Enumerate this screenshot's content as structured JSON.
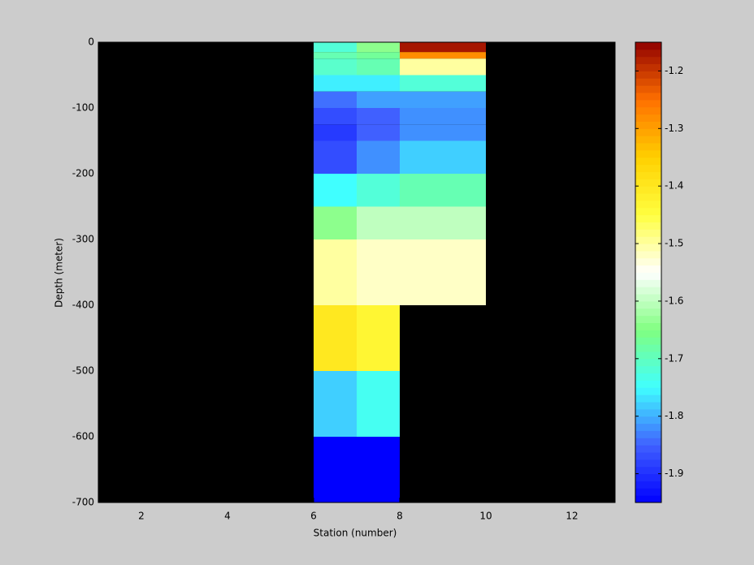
{
  "chart_data": {
    "type": "heatmap",
    "xlabel": "Station (number)",
    "ylabel": "Depth (meter)",
    "x_edges": [
      6,
      7,
      8,
      10
    ],
    "y_edges": [
      0,
      -15,
      -25,
      -50,
      -75,
      -100,
      -125,
      -150,
      -200,
      -250,
      -300,
      -400,
      -500,
      -600,
      -700
    ],
    "values": [
      [
        -1.72,
        -1.64,
        -1.17
      ],
      [
        -1.69,
        -1.67,
        -1.28
      ],
      [
        -1.71,
        -1.69,
        -1.5
      ],
      [
        -1.76,
        -1.76,
        -1.72
      ],
      [
        -1.84,
        -1.81,
        -1.81
      ],
      [
        -1.87,
        -1.85,
        -1.82
      ],
      [
        -1.89,
        -1.85,
        -1.82
      ],
      [
        -1.87,
        -1.82,
        -1.78
      ],
      [
        -1.75,
        -1.72,
        -1.69
      ],
      [
        -1.64,
        -1.6,
        -1.6
      ],
      [
        -1.5,
        -1.52,
        -1.52
      ],
      [
        -1.4,
        -1.43,
        null
      ],
      [
        -1.78,
        -1.74,
        null
      ],
      [
        -1.95,
        -1.95,
        null
      ]
    ],
    "xlim": [
      1,
      13
    ],
    "xticks": [
      2,
      4,
      6,
      8,
      10,
      12
    ],
    "ylim": [
      -700,
      0
    ],
    "yticks": [
      0,
      -100,
      -200,
      -300,
      -400,
      -500,
      -600,
      -700
    ],
    "clim": [
      -1.95,
      -1.15
    ],
    "cticks": [
      -1.2,
      -1.3,
      -1.4,
      -1.5,
      -1.6,
      -1.7,
      -1.8,
      -1.9
    ],
    "colormap": [
      "#0000ff",
      "#4060ff",
      "#40ffff",
      "#80ff80",
      "#ffffff",
      "#ffff40",
      "#ffd000",
      "#ff7000",
      "#900000"
    ],
    "background": "#000000"
  }
}
